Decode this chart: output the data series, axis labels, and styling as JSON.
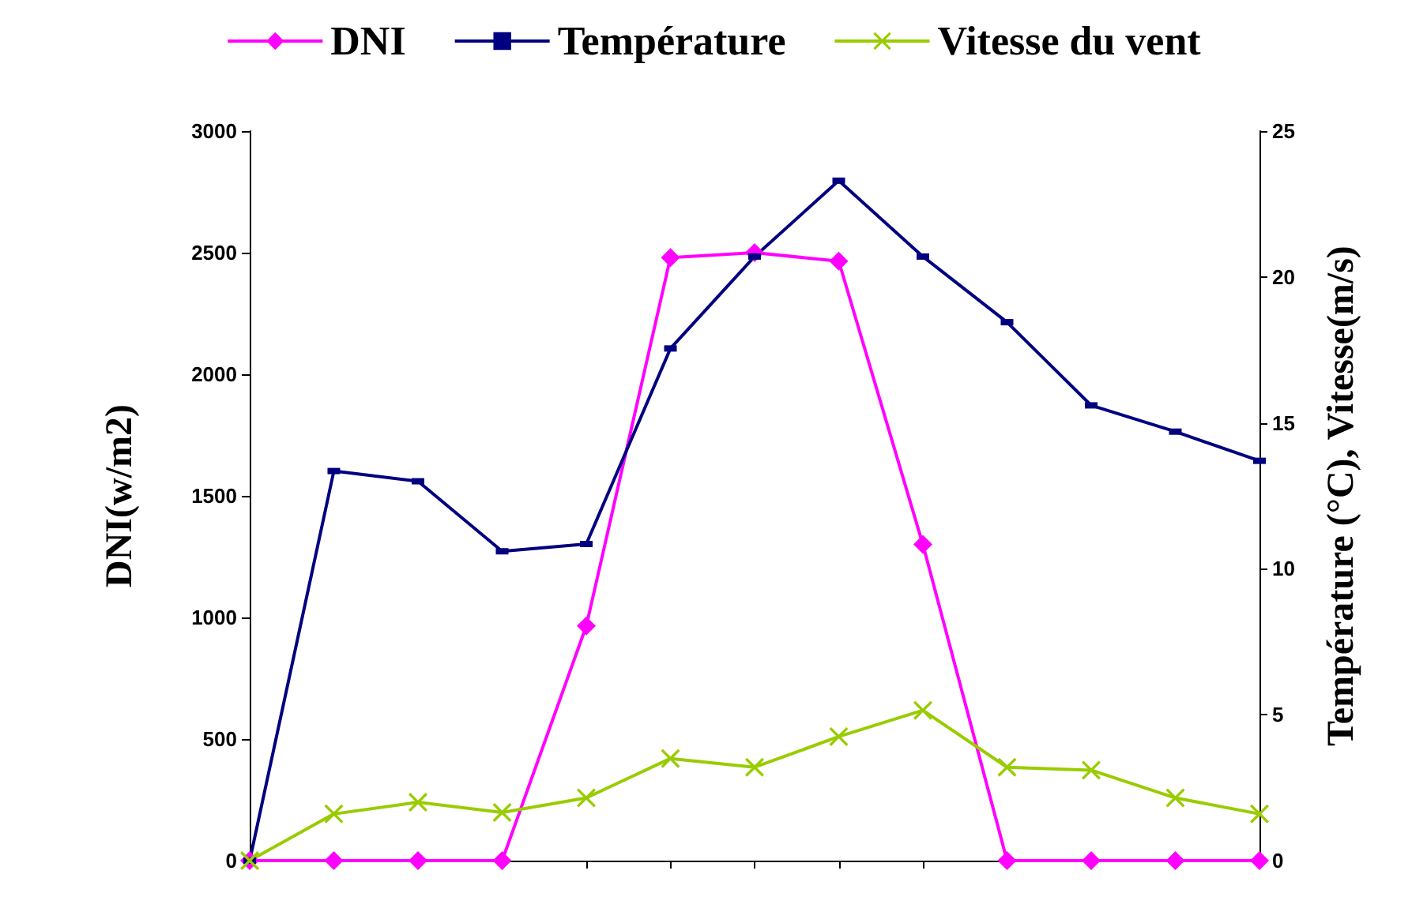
{
  "chart_data": {
    "type": "line",
    "ylabel": "DNI(w/m2)",
    "y2label": "Température (°C), Vitesse(m/s)",
    "categories": [
      null,
      null,
      null,
      null,
      null,
      null,
      null,
      null,
      null,
      null,
      null,
      null,
      null
    ],
    "series": [
      {
        "name": "DNI",
        "color": "#ff00ff",
        "marker": "diamond",
        "values": [
          0,
          0,
          0,
          0,
          965,
          2480,
          2500,
          2465,
          1300,
          0,
          0,
          0,
          0
        ]
      },
      {
        "name": "Température",
        "color": "#000080",
        "marker": "square",
        "axis": "y2",
        "values": [
          0,
          13.35,
          13.0,
          10.6,
          10.85,
          17.55,
          20.7,
          23.3,
          20.7,
          18.45,
          15.6,
          14.7,
          13.7
        ]
      },
      {
        "name": "Vitesse du vent",
        "color": "#99cc00",
        "marker": "cross",
        "axis": "y2",
        "values": [
          0,
          1.6,
          2.0,
          1.65,
          2.15,
          3.5,
          3.2,
          4.25,
          5.15,
          3.2,
          3.1,
          2.15,
          1.6
        ]
      }
    ],
    "ylim": [
      0,
      3000
    ],
    "yticks": [
      0,
      500,
      1000,
      1500,
      2000,
      2500,
      3000
    ],
    "y2lim": [
      0,
      25
    ],
    "y2ticks": [
      0,
      5,
      10,
      15,
      20,
      25
    ],
    "legend": "top",
    "grid": false,
    "line_style": "solid"
  }
}
